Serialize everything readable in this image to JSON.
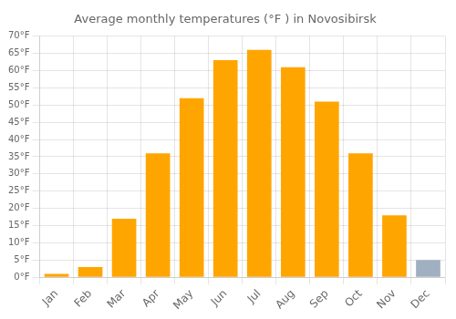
{
  "chart_data": {
    "type": "bar",
    "title": "Average monthly temperatures (°F ) in Novosibirsk",
    "categories": [
      "Jan",
      "Feb",
      "Mar",
      "Apr",
      "May",
      "Jun",
      "Jul",
      "Aug",
      "Sep",
      "Oct",
      "Nov",
      "Dec"
    ],
    "values": [
      1,
      3,
      17,
      36,
      52,
      63,
      66,
      61,
      51,
      36,
      18,
      5
    ],
    "colors": [
      "#FFA500",
      "#FFA500",
      "#FFA500",
      "#FFA500",
      "#FFA500",
      "#FFA500",
      "#FFA500",
      "#FFA500",
      "#FFA500",
      "#FFA500",
      "#FFA500",
      "#a0b0c0"
    ],
    "ylim": [
      0,
      70
    ],
    "yticks": [
      {
        "value": 0,
        "label": "0°F"
      },
      {
        "value": 5,
        "label": "5°F"
      },
      {
        "value": 10,
        "label": "10°F"
      },
      {
        "value": 15,
        "label": "15°F"
      },
      {
        "value": 20,
        "label": "20°F"
      },
      {
        "value": 25,
        "label": "25°F"
      },
      {
        "value": 30,
        "label": "30°F"
      },
      {
        "value": 35,
        "label": "35°F"
      },
      {
        "value": 40,
        "label": "40°F"
      },
      {
        "value": 45,
        "label": "45°F"
      },
      {
        "value": 50,
        "label": "50°F"
      },
      {
        "value": 55,
        "label": "55°F"
      },
      {
        "value": 60,
        "label": "60°F"
      },
      {
        "value": 65,
        "label": "65°F"
      },
      {
        "value": 70,
        "label": "70°F"
      }
    ],
    "grid": true
  }
}
